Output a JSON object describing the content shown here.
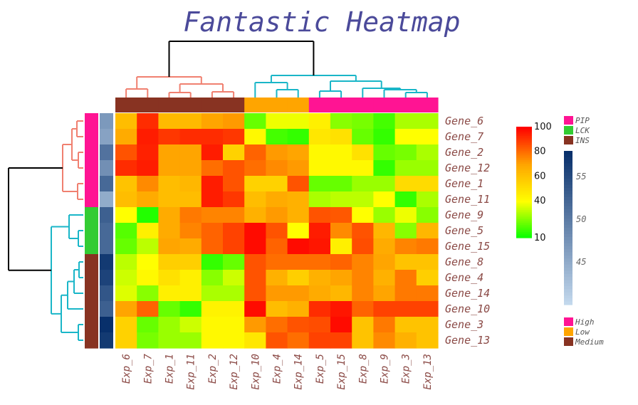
{
  "chart_data": {
    "type": "heatmap",
    "title": "Fantastic Heatmap",
    "rows": [
      "Gene_6",
      "Gene_7",
      "Gene_2",
      "Gene_12",
      "Gene_1",
      "Gene_11",
      "Gene_9",
      "Gene_5",
      "Gene_15",
      "Gene_8",
      "Gene_4",
      "Gene_14",
      "Gene_10",
      "Gene_3",
      "Gene_13"
    ],
    "columns": [
      "Exp_6",
      "Exp_7",
      "Exp_1",
      "Exp_11",
      "Exp_2",
      "Exp_12",
      "Exp_10",
      "Exp_4",
      "Exp_14",
      "Exp_5",
      "Exp_15",
      "Exp_8",
      "Exp_9",
      "Exp_3",
      "Exp_13"
    ],
    "values": [
      [
        62,
        92,
        63,
        63,
        70,
        72,
        22,
        38,
        38,
        45,
        26,
        24,
        18,
        30,
        30
      ],
      [
        68,
        95,
        90,
        92,
        92,
        90,
        42,
        18,
        16,
        48,
        50,
        22,
        16,
        40,
        40
      ],
      [
        85,
        94,
        70,
        70,
        95,
        55,
        82,
        72,
        70,
        42,
        42,
        50,
        22,
        24,
        30
      ],
      [
        92,
        95,
        70,
        70,
        80,
        85,
        80,
        75,
        72,
        42,
        42,
        42,
        16,
        28,
        28
      ],
      [
        60,
        75,
        62,
        64,
        95,
        85,
        55,
        55,
        85,
        22,
        22,
        28,
        28,
        52,
        52
      ],
      [
        62,
        68,
        62,
        62,
        95,
        90,
        62,
        68,
        66,
        30,
        32,
        32,
        40,
        16,
        30
      ],
      [
        40,
        14,
        68,
        78,
        76,
        76,
        66,
        72,
        66,
        85,
        84,
        40,
        28,
        38,
        26
      ],
      [
        20,
        45,
        68,
        76,
        82,
        88,
        98,
        85,
        40,
        95,
        75,
        85,
        64,
        26,
        64
      ],
      [
        22,
        32,
        70,
        68,
        82,
        88,
        98,
        82,
        98,
        96,
        45,
        86,
        68,
        76,
        78
      ],
      [
        32,
        40,
        56,
        56,
        16,
        22,
        85,
        80,
        80,
        80,
        82,
        76,
        70,
        60,
        60
      ],
      [
        34,
        42,
        50,
        45,
        26,
        34,
        85,
        66,
        56,
        66,
        70,
        76,
        66,
        78,
        56
      ],
      [
        36,
        26,
        45,
        45,
        30,
        30,
        85,
        72,
        72,
        68,
        64,
        76,
        70,
        78,
        78
      ],
      [
        70,
        82,
        22,
        16,
        44,
        44,
        98,
        62,
        66,
        92,
        96,
        82,
        88,
        88,
        88
      ],
      [
        55,
        22,
        28,
        34,
        42,
        42,
        72,
        80,
        85,
        86,
        98,
        60,
        78,
        60,
        60
      ],
      [
        55,
        24,
        28,
        28,
        42,
        42,
        48,
        85,
        80,
        88,
        88,
        60,
        75,
        66,
        60
      ]
    ],
    "color_scale": {
      "min": 10,
      "max": 100,
      "ticks": [
        10,
        40,
        60,
        80,
        100
      ],
      "colors": [
        "#00ff00",
        "#ffff00",
        "#ffa500",
        "#ff0000"
      ]
    },
    "row_groups": [
      "PIP",
      "PIP",
      "PIP",
      "PIP",
      "PIP",
      "PIP",
      "LCK",
      "LCK",
      "LCK",
      "INS",
      "INS",
      "INS",
      "INS",
      "INS",
      "INS"
    ],
    "row_group_legend": [
      {
        "label": "PIP",
        "color": "#ff1493"
      },
      {
        "label": "LCK",
        "color": "#33cc33"
      },
      {
        "label": "INS",
        "color": "#883322"
      }
    ],
    "row_annotation_values": [
      47,
      46,
      51,
      48,
      52,
      45,
      53,
      52,
      52,
      57,
      56,
      54,
      53,
      58,
      57
    ],
    "row_annotation_scale": {
      "min": 40,
      "max": 58,
      "ticks": [
        45,
        50,
        55
      ],
      "colors": [
        "#c6dbef",
        "#08306b"
      ]
    },
    "col_groups": [
      "Medium",
      "Medium",
      "Medium",
      "Medium",
      "Medium",
      "Medium",
      "Low",
      "Low",
      "Low",
      "High",
      "High",
      "High",
      "High",
      "High",
      "High"
    ],
    "col_group_legend": [
      {
        "label": "High",
        "color": "#ff1493"
      },
      {
        "label": "Low",
        "color": "#ffa500"
      },
      {
        "label": "Medium",
        "color": "#883322"
      }
    ],
    "row_dendrogram_colors": [
      "#f08070",
      "#1ab6c8"
    ],
    "col_dendrogram_colors": [
      "#f08070",
      "#1ab6c8"
    ],
    "grid": false
  }
}
